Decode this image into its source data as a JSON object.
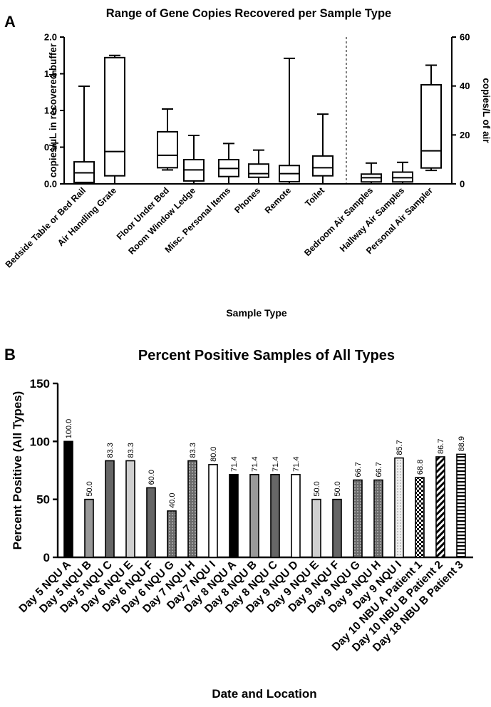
{
  "chart_data": [
    {
      "panel_label": "A",
      "type": "boxplot",
      "title": "Range of Gene Copies Recovered per Sample Type",
      "xlabel": "Sample Type",
      "ylabel": "copies/µL in recovered buffer",
      "y2label": "copies/L of air",
      "ylim": [
        0,
        2.0
      ],
      "yticks": [
        "0.0",
        "0.5",
        "1.0",
        "1.5",
        "2.0"
      ],
      "y2lim": [
        0,
        60
      ],
      "y2ticks": [
        "0",
        "20",
        "40",
        "60"
      ],
      "categories": [
        "Bedside Table or Bed Rail",
        "Air Handling Grate",
        "Floor Under Bed",
        "Room Window Ledge",
        "Misc. Personal Items",
        "Phones",
        "Remote",
        "Toilet",
        "Bedroom Air Samples",
        "Hallway Air Samples",
        "Personal Air Sampler"
      ],
      "axis": [
        "left",
        "left",
        "left",
        "left",
        "left",
        "left",
        "left",
        "left",
        "right",
        "right",
        "right"
      ],
      "boxes": [
        {
          "min": 0.0,
          "q1": 0.02,
          "median": 0.15,
          "q3": 0.3,
          "max": 1.33
        },
        {
          "min": 0.0,
          "q1": 0.11,
          "median": 0.44,
          "q3": 1.72,
          "max": 1.75
        },
        {
          "min": 0.19,
          "q1": 0.22,
          "median": 0.39,
          "q3": 0.71,
          "max": 1.02
        },
        {
          "min": 0.0,
          "q1": 0.04,
          "median": 0.19,
          "q3": 0.33,
          "max": 0.66
        },
        {
          "min": 0.0,
          "q1": 0.1,
          "median": 0.21,
          "q3": 0.33,
          "max": 0.55
        },
        {
          "min": 0.0,
          "q1": 0.09,
          "median": 0.14,
          "q3": 0.27,
          "max": 0.46
        },
        {
          "min": 0.0,
          "q1": 0.03,
          "median": 0.14,
          "q3": 0.25,
          "max": 1.71
        },
        {
          "min": 0.0,
          "q1": 0.11,
          "median": 0.22,
          "q3": 0.38,
          "max": 0.95
        },
        {
          "min": 0.0,
          "q1": 0.8,
          "median": 2.5,
          "q3": 4.0,
          "max": 8.5
        },
        {
          "min": 0.0,
          "q1": 0.8,
          "median": 2.5,
          "q3": 4.8,
          "max": 8.8
        },
        {
          "min": 5.5,
          "q1": 6.5,
          "median": 13.5,
          "q3": 40.5,
          "max": 48.5
        }
      ]
    },
    {
      "panel_label": "B",
      "type": "bar",
      "title": "Percent Positive Samples of All Types",
      "xlabel": "Date and Location",
      "ylabel": "Percent Positive  (All  Types)",
      "ylim": [
        0,
        150
      ],
      "yticks": [
        "0",
        "50",
        "100",
        "150"
      ],
      "categories": [
        "Day 5 NQU A",
        "Day 5 NQU B",
        "Day 5 NQU C",
        "Day 6 NQU E",
        "Day 6 NQU F",
        "Day 6 NQU G",
        "Day 7 NQU H",
        "Day 7 NQU I",
        "Day 8 NQU A",
        "Day 8 NQU B",
        "Day 8 NQU C",
        "Day 9 NQU D",
        "Day 9 NQU E",
        "Day 9 NQU F",
        "Day 9 NQU G",
        "Day 9 NQU H",
        "Day 9 NQU I",
        "Day 10 NBU A Patient 1",
        "Day 10 NBU B Patient 2",
        "Day 18 NBU B Patient 3"
      ],
      "values": [
        100.0,
        50.0,
        83.3,
        83.3,
        60.0,
        40.0,
        83.3,
        80.0,
        71.4,
        71.4,
        71.4,
        71.4,
        50.0,
        50.0,
        66.7,
        66.7,
        85.7,
        68.8,
        86.7,
        88.9
      ],
      "labels": [
        "100.0",
        "50.0",
        "83.3",
        "83.3",
        "60.0",
        "40.0",
        "83.3",
        "80.0",
        "71.4",
        "71.4",
        "71.4",
        "71.4",
        "50.0",
        "50.0",
        "66.7",
        "66.7",
        "85.7",
        "68.8",
        "86.7",
        "88.9"
      ],
      "fills": [
        "black",
        "midgray",
        "darkgray",
        "lightgray",
        "darkgray",
        "dots",
        "dots",
        "white",
        "black",
        "midgray",
        "darkgray",
        "white",
        "lightgray",
        "darkgray",
        "dots",
        "dots",
        "dots-light",
        "checker",
        "diagonal",
        "horizontal"
      ]
    }
  ]
}
